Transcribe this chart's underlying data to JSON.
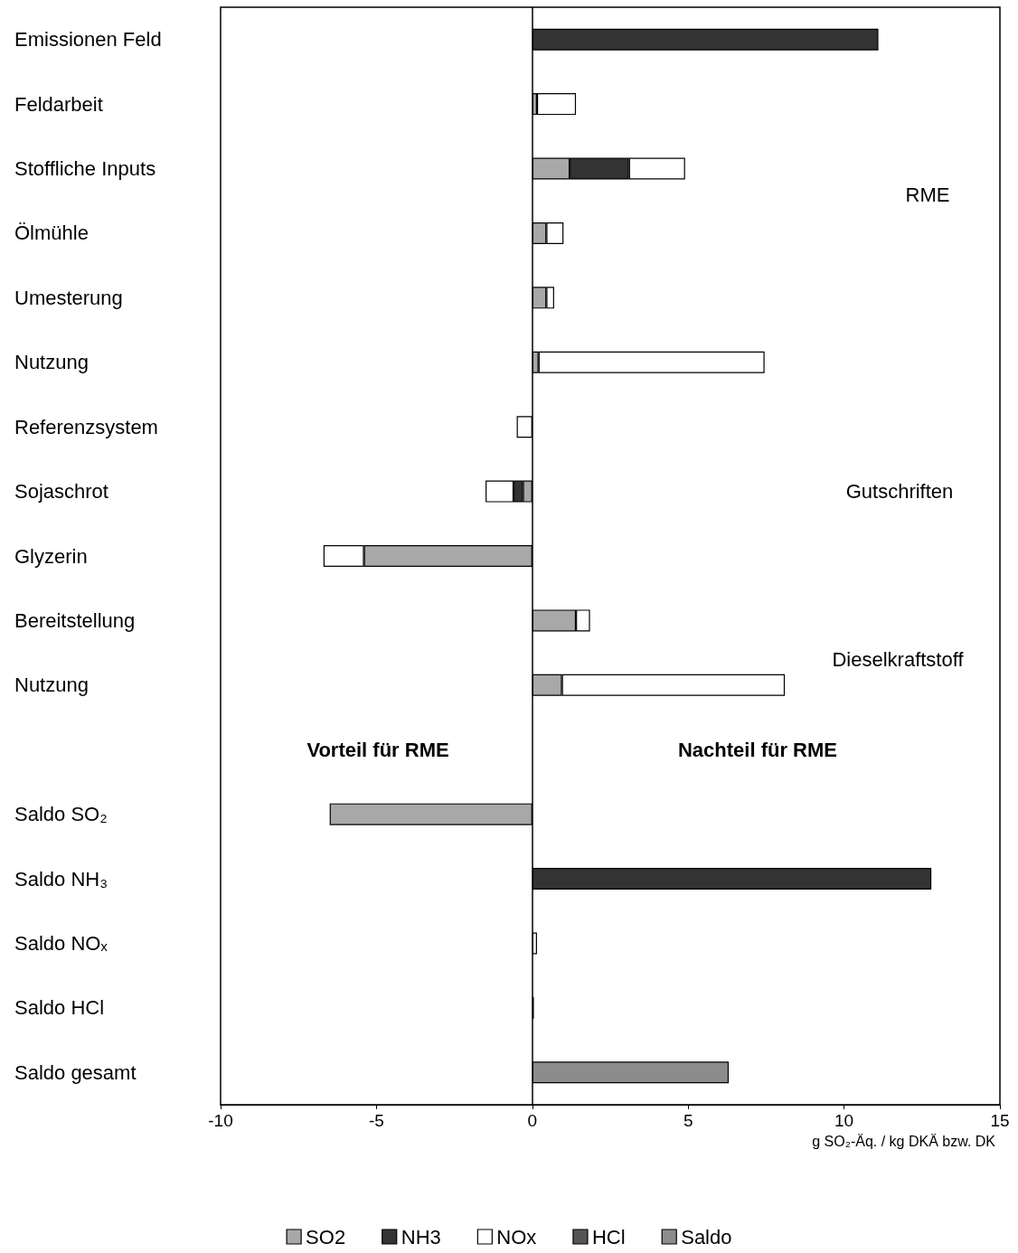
{
  "chart_data": {
    "type": "bar",
    "orientation": "horizontal",
    "stacked": true,
    "categories": [
      "Emissionen Feld",
      "Feldarbeit",
      "Stoffliche Inputs",
      "Ölmühle",
      "Umesterung",
      "Nutzung",
      "Referenzsystem",
      "Sojaschrot",
      "Glyzerin",
      "Bereitstellung",
      "Nutzung",
      null,
      "Saldo SO₂",
      "Saldo NH₃",
      "Saldo NOₓ",
      "Saldo HCl",
      "Saldo gesamt"
    ],
    "series": [
      {
        "name": "SO2",
        "color": "#a8a8a8",
        "values": [
          null,
          0.15,
          1.2,
          0.45,
          0.45,
          0.2,
          null,
          -0.3,
          -5.4,
          1.4,
          0.95,
          null,
          -6.5,
          null,
          null,
          null,
          null
        ]
      },
      {
        "name": "NH3",
        "color": "#333333",
        "values": [
          11.1,
          null,
          1.9,
          null,
          null,
          null,
          null,
          -0.3,
          null,
          null,
          null,
          null,
          null,
          12.8,
          null,
          null,
          null
        ]
      },
      {
        "name": "NOx",
        "color": "#ffffff",
        "values": [
          null,
          1.25,
          1.8,
          0.55,
          0.25,
          7.25,
          -0.5,
          -0.9,
          -1.3,
          0.45,
          7.15,
          null,
          null,
          null,
          0.15,
          null,
          null
        ]
      },
      {
        "name": "HCl",
        "color": "#555555",
        "values": [
          null,
          null,
          null,
          null,
          null,
          null,
          null,
          null,
          null,
          null,
          null,
          null,
          null,
          null,
          null,
          0.05,
          null
        ]
      },
      {
        "name": "Saldo",
        "color": "#8c8c8c",
        "values": [
          null,
          null,
          null,
          null,
          null,
          null,
          null,
          null,
          null,
          null,
          null,
          null,
          null,
          null,
          null,
          null,
          6.3
        ]
      }
    ],
    "xlabel": "g SO₂-Äq. / kg DKÄ bzw. DK",
    "xlim": [
      -10,
      15
    ],
    "xticks": [
      -10,
      -5,
      0,
      5,
      10,
      15
    ],
    "ref_lines": [
      {
        "axis": "x",
        "value": 0
      }
    ],
    "annotations": [
      "RME",
      "Gutschriften",
      "Dieselkraftstoff",
      "Vorteil für RME",
      "Nachteil für RME"
    ],
    "grid": false,
    "legend": "bottom"
  }
}
